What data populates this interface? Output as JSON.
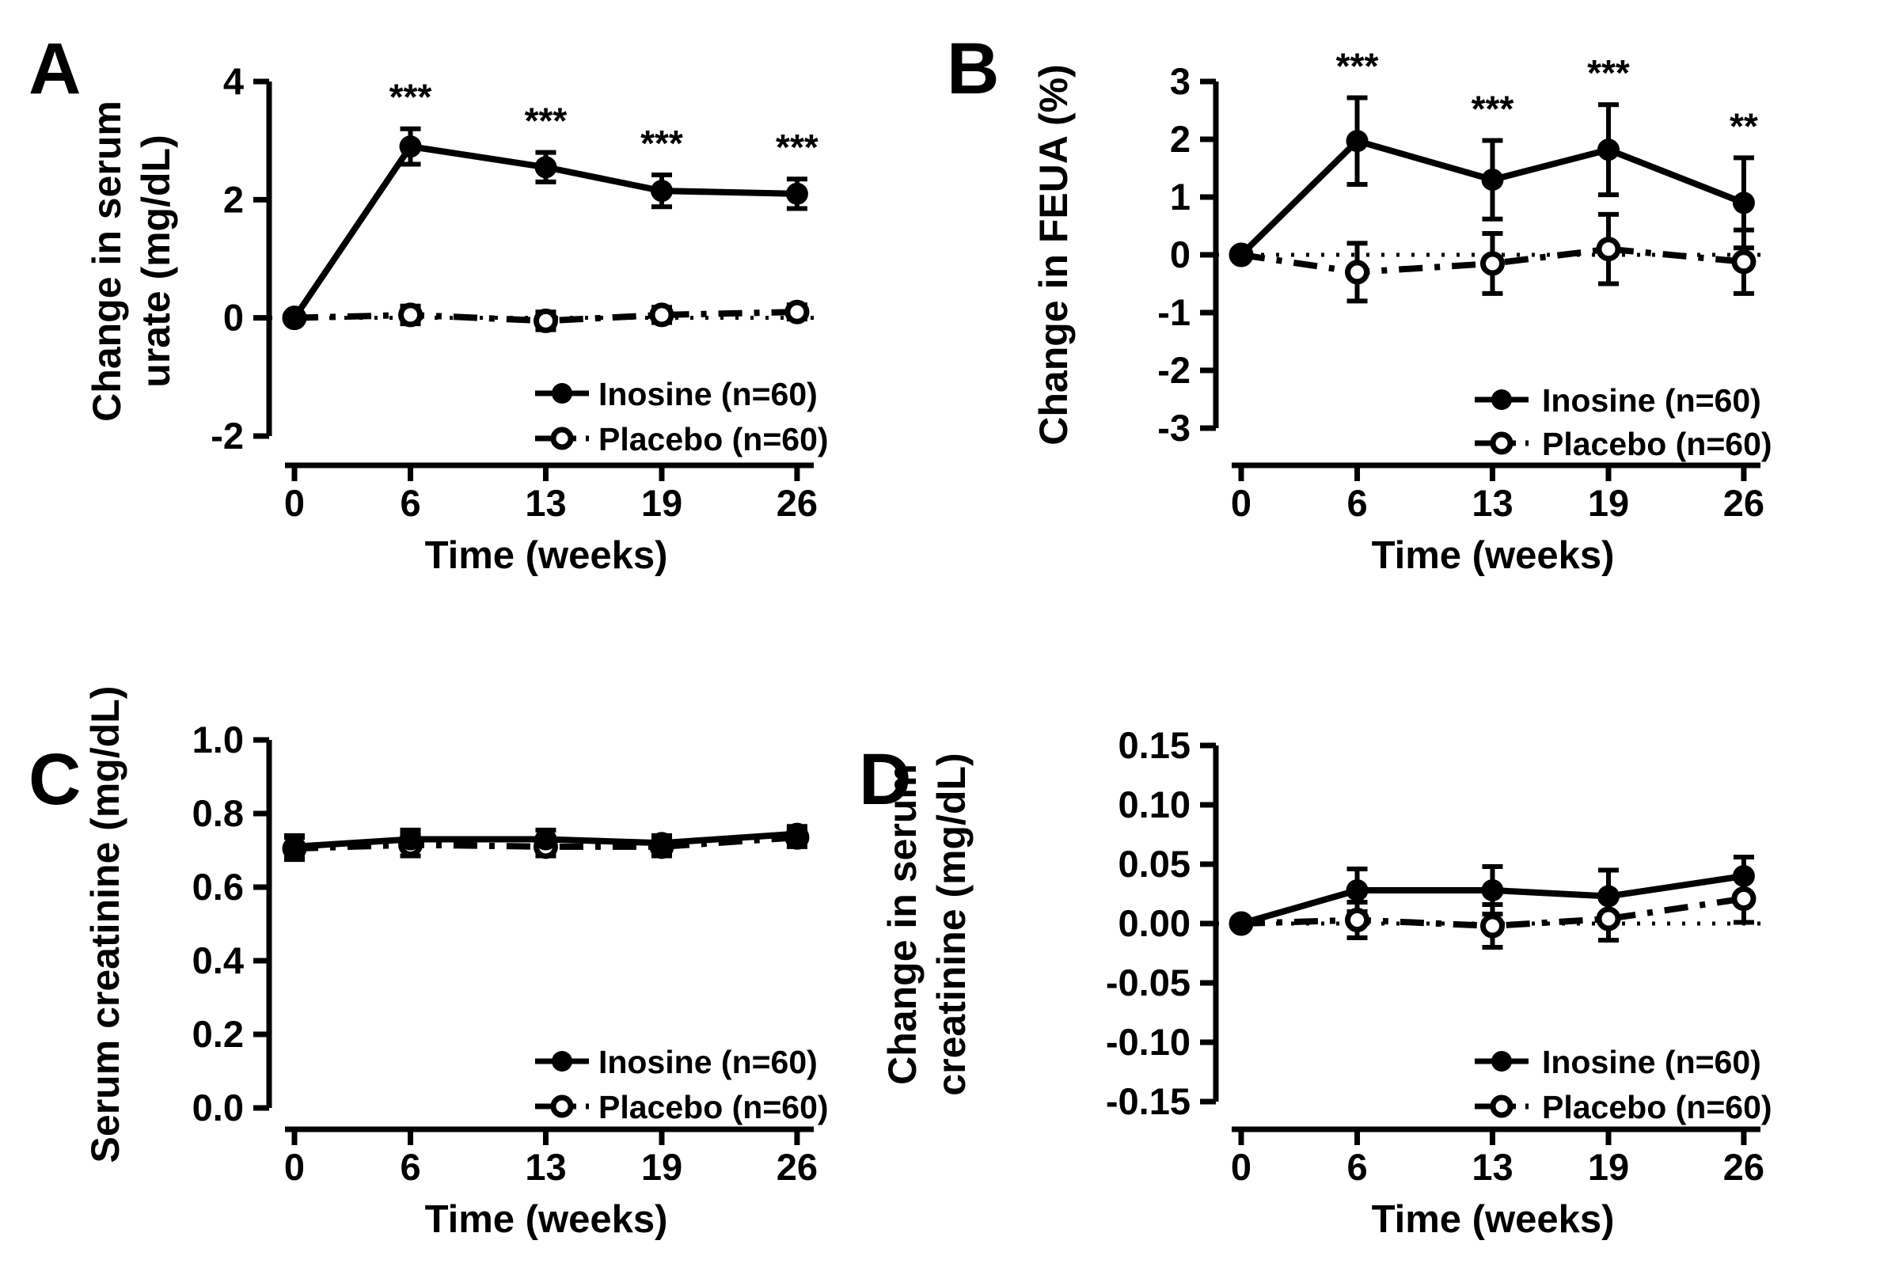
{
  "figure": {
    "background": "#ffffff",
    "ink_color": "#000000",
    "legend": {
      "inosine_label": "Inosine (n=60)",
      "placebo_label": "Placebo (n=60)"
    },
    "x_axis_label": "Time (weeks)",
    "weeks": [
      0,
      6,
      13,
      19,
      26
    ],
    "x_tick_labels": [
      "0",
      "6",
      "13",
      "19",
      "26"
    ]
  },
  "chart_data": [
    {
      "panel": "A",
      "type": "line",
      "title": "",
      "xlabel": "Time (weeks)",
      "ylabel_lines": [
        "Change in serum",
        "urate (mg/dL)"
      ],
      "x": [
        0,
        6,
        13,
        19,
        26
      ],
      "ylim": [
        -2,
        4
      ],
      "y_ticks": [
        {
          "v": -2,
          "label": "-2"
        },
        {
          "v": 0,
          "label": "0"
        },
        {
          "v": 2,
          "label": "2"
        },
        {
          "v": 4,
          "label": "4"
        }
      ],
      "zero_line": true,
      "legend_position": "lower-right",
      "series": [
        {
          "name": "Inosine (n=60)",
          "marker": "filled-circle",
          "line": "solid",
          "values": [
            0,
            2.9,
            2.55,
            2.15,
            2.1
          ],
          "errors": [
            0,
            0.3,
            0.25,
            0.27,
            0.25
          ]
        },
        {
          "name": "Placebo (n=60)",
          "marker": "open-circle",
          "line": "dash-dot",
          "values": [
            0,
            0.05,
            -0.05,
            0.05,
            0.1
          ],
          "errors": [
            0,
            0.15,
            0.15,
            0.13,
            0.12
          ]
        }
      ],
      "significance": [
        {
          "week": 6,
          "label": "***"
        },
        {
          "week": 13,
          "label": "***"
        },
        {
          "week": 19,
          "label": "***"
        },
        {
          "week": 26,
          "label": "***"
        }
      ]
    },
    {
      "panel": "B",
      "type": "line",
      "title": "",
      "xlabel": "Time (weeks)",
      "ylabel_lines": [
        "Change in FEUA (%)"
      ],
      "x": [
        0,
        6,
        13,
        19,
        26
      ],
      "ylim": [
        -3,
        3
      ],
      "y_ticks": [
        {
          "v": -3,
          "label": "-3"
        },
        {
          "v": -2,
          "label": "-2"
        },
        {
          "v": -1,
          "label": "-1"
        },
        {
          "v": 0,
          "label": "0"
        },
        {
          "v": 1,
          "label": "1"
        },
        {
          "v": 2,
          "label": "2"
        },
        {
          "v": 3,
          "label": "3"
        }
      ],
      "zero_line": true,
      "legend_position": "lower-right",
      "series": [
        {
          "name": "Inosine (n=60)",
          "marker": "filled-circle",
          "line": "solid",
          "values": [
            0,
            1.97,
            1.3,
            1.82,
            0.9
          ],
          "errors": [
            0,
            0.75,
            0.68,
            0.78,
            0.78
          ]
        },
        {
          "name": "Placebo (n=60)",
          "marker": "open-circle",
          "line": "dash-dot",
          "values": [
            0,
            -0.3,
            -0.15,
            0.1,
            -0.12
          ],
          "errors": [
            0,
            0.5,
            0.52,
            0.6,
            0.55
          ]
        }
      ],
      "significance": [
        {
          "week": 6,
          "label": "***"
        },
        {
          "week": 13,
          "label": "***"
        },
        {
          "week": 19,
          "label": "***"
        },
        {
          "week": 26,
          "label": "**"
        }
      ]
    },
    {
      "panel": "C",
      "type": "line",
      "title": "",
      "xlabel": "Time (weeks)",
      "ylabel_lines": [
        "Serum creatinine (mg/dL)"
      ],
      "x": [
        0,
        6,
        13,
        19,
        26
      ],
      "ylim": [
        0,
        1
      ],
      "y_ticks": [
        {
          "v": 0,
          "label": "0.0"
        },
        {
          "v": 0.2,
          "label": "0.2"
        },
        {
          "v": 0.4,
          "label": "0.4"
        },
        {
          "v": 0.6,
          "label": "0.6"
        },
        {
          "v": 0.8,
          "label": "0.8"
        },
        {
          "v": 1.0,
          "label": "1.0"
        }
      ],
      "zero_line": false,
      "legend_position": "lower-right",
      "series": [
        {
          "name": "Inosine (n=60)",
          "marker": "filled-circle",
          "line": "solid",
          "values": [
            0.71,
            0.73,
            0.73,
            0.72,
            0.745
          ],
          "errors": [
            0.03,
            0.025,
            0.025,
            0.02,
            0.02
          ]
        },
        {
          "name": "Placebo (n=60)",
          "marker": "open-circle",
          "line": "dash-dot",
          "values": [
            0.705,
            0.715,
            0.71,
            0.71,
            0.735
          ],
          "errors": [
            0.03,
            0.03,
            0.025,
            0.025,
            0.025
          ]
        }
      ],
      "significance": []
    },
    {
      "panel": "D",
      "type": "line",
      "title": "",
      "xlabel": "Time (weeks)",
      "ylabel_lines": [
        "Change in serum",
        "creatinine (mg/dL)"
      ],
      "x": [
        0,
        6,
        13,
        19,
        26
      ],
      "ylim": [
        -0.15,
        0.15
      ],
      "y_ticks": [
        {
          "v": -0.15,
          "label": "-0.15"
        },
        {
          "v": -0.1,
          "label": "-0.10"
        },
        {
          "v": -0.05,
          "label": "-0.05"
        },
        {
          "v": 0.0,
          "label": "0.00"
        },
        {
          "v": 0.05,
          "label": "0.05"
        },
        {
          "v": 0.1,
          "label": "0.10"
        },
        {
          "v": 0.15,
          "label": "0.15"
        }
      ],
      "zero_line": true,
      "legend_position": "lower-right",
      "series": [
        {
          "name": "Inosine (n=60)",
          "marker": "filled-circle",
          "line": "solid",
          "values": [
            0,
            0.028,
            0.028,
            0.023,
            0.04
          ],
          "errors": [
            0,
            0.018,
            0.02,
            0.022,
            0.016
          ]
        },
        {
          "name": "Placebo (n=60)",
          "marker": "open-circle",
          "line": "dash-dot",
          "values": [
            0,
            0.003,
            -0.002,
            0.004,
            0.021
          ],
          "errors": [
            0,
            0.015,
            0.018,
            0.018,
            0.02
          ]
        }
      ],
      "significance": []
    }
  ]
}
